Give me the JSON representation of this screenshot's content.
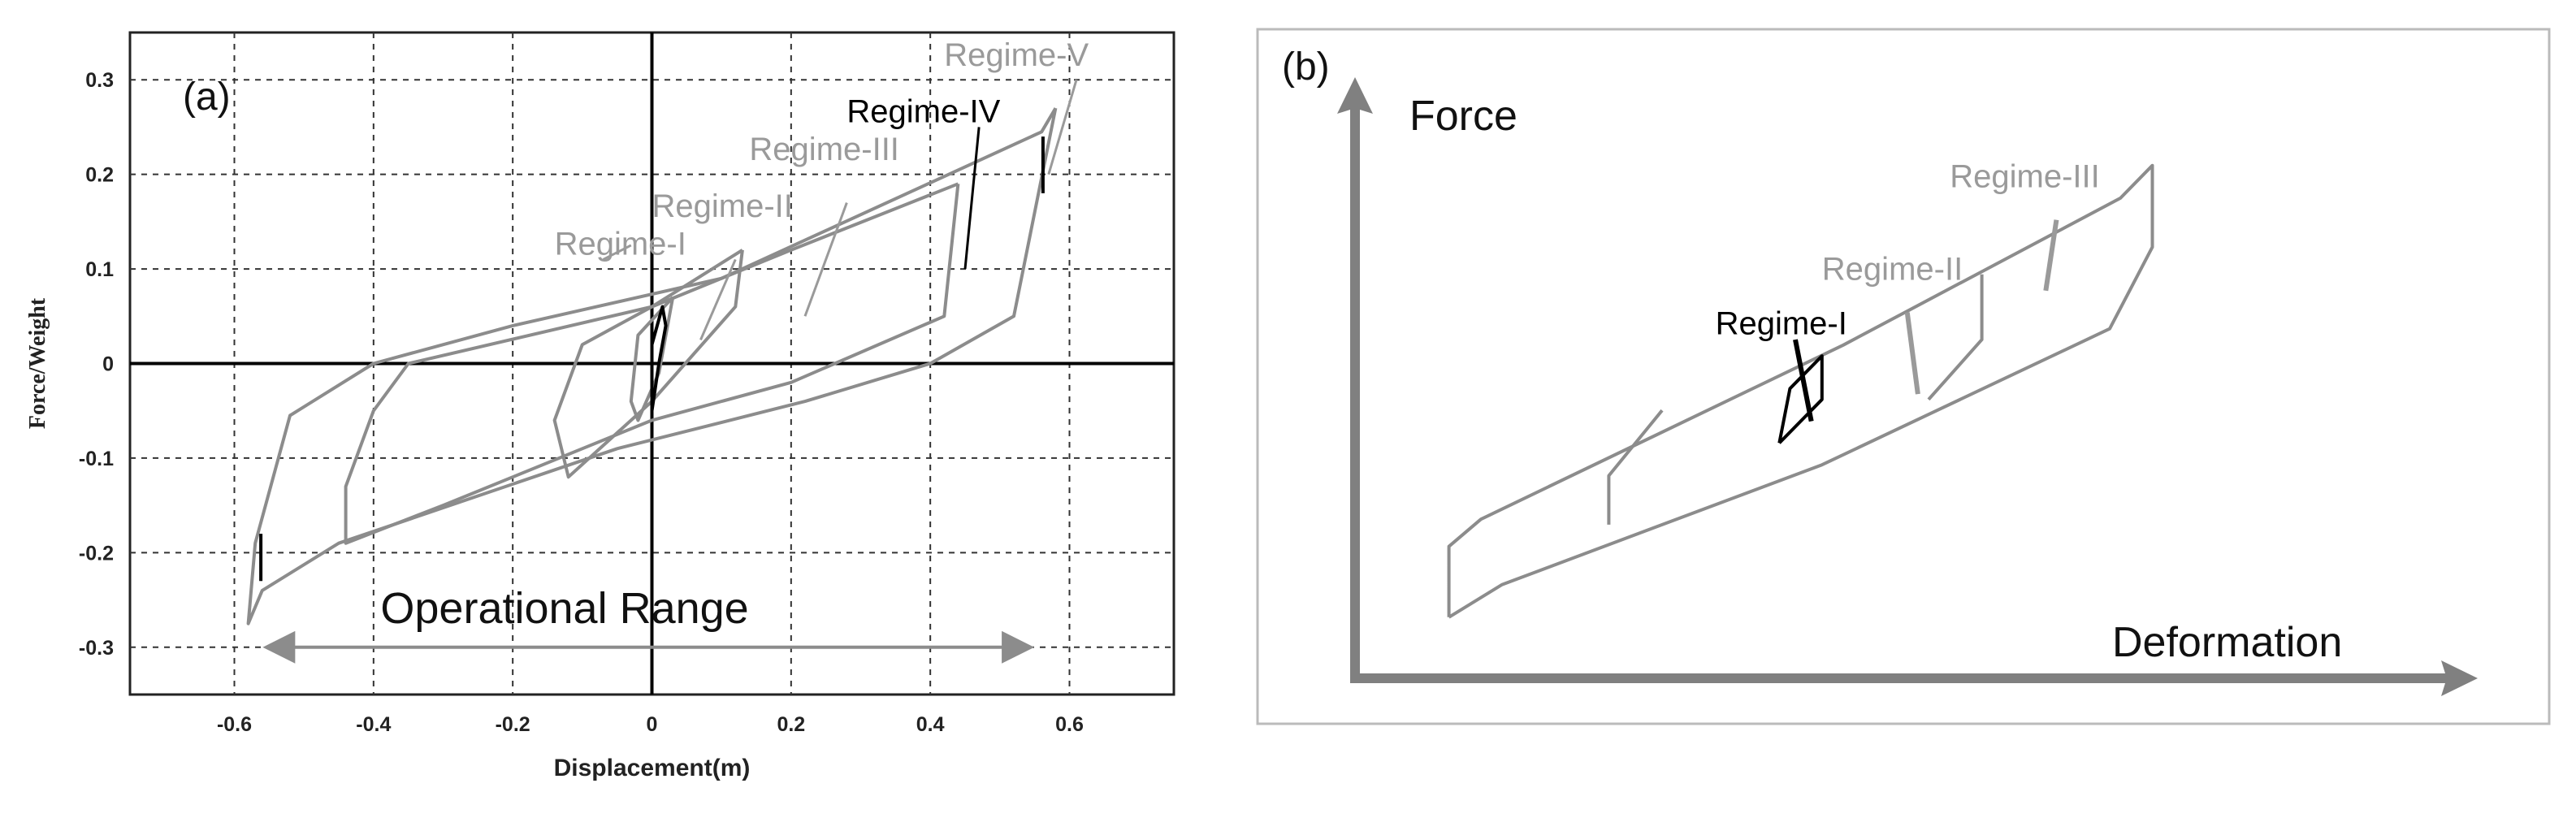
{
  "colors": {
    "gray": "#8c8c8c",
    "black": "#000000",
    "label_gray": "#9a9a9a",
    "axis_gray": "#808080",
    "frame": "#bbbbbb"
  },
  "chart_data": [
    {
      "type": "line",
      "panel_label": "(a)",
      "xlabel": "Displacement(m)",
      "ylabel": "Force/Weight",
      "xlim": [
        -0.75,
        0.75
      ],
      "ylim": [
        -0.35,
        0.35
      ],
      "x_ticks": [
        -0.6,
        -0.4,
        -0.2,
        0,
        0.2,
        0.4,
        0.6
      ],
      "x_tick_labels": [
        "-0.6",
        "-0.4",
        "-0.2",
        "0",
        "0.2",
        "0.4",
        "0.6"
      ],
      "y_ticks": [
        0.3,
        0.2,
        0.1,
        0,
        -0.1,
        -0.2,
        -0.3
      ],
      "y_tick_labels": [
        "0.3",
        "0.2",
        "0.1",
        "0",
        "-0.1",
        "-0.2",
        "-0.3"
      ],
      "grid": true,
      "range_annotation": {
        "text": "Operational Range",
        "from": -0.55,
        "to": 0.54,
        "y": -0.3
      },
      "series": [
        {
          "color": "gray",
          "points": [
            [
              0.58,
              0.27
            ],
            [
              0.52,
              0.05
            ],
            [
              0.4,
              0.0
            ],
            [
              0.22,
              -0.04
            ],
            [
              -0.05,
              -0.09
            ],
            [
              -0.45,
              -0.19
            ],
            [
              -0.56,
              -0.24
            ],
            [
              -0.58,
              -0.275
            ],
            [
              -0.57,
              -0.19
            ],
            [
              -0.52,
              -0.055
            ],
            [
              -0.4,
              0.0
            ],
            [
              -0.2,
              0.04
            ],
            [
              0.1,
              0.09
            ],
            [
              0.56,
              0.245
            ],
            [
              0.58,
              0.27
            ]
          ]
        },
        {
          "color": "gray",
          "points": [
            [
              0.44,
              0.19
            ],
            [
              0.42,
              0.05
            ],
            [
              0.2,
              -0.02
            ],
            [
              0.0,
              -0.06
            ],
            [
              -0.3,
              -0.15
            ],
            [
              -0.44,
              -0.19
            ],
            [
              -0.44,
              -0.13
            ],
            [
              -0.4,
              -0.05
            ],
            [
              -0.35,
              0.0
            ],
            [
              0.0,
              0.06
            ],
            [
              0.2,
              0.12
            ],
            [
              0.44,
              0.19
            ]
          ]
        },
        {
          "color": "gray",
          "points": [
            [
              0.13,
              0.12
            ],
            [
              0.12,
              0.06
            ],
            [
              0.0,
              -0.04
            ],
            [
              -0.12,
              -0.12
            ],
            [
              -0.14,
              -0.06
            ],
            [
              -0.1,
              0.02
            ],
            [
              0.0,
              0.06
            ],
            [
              0.13,
              0.12
            ]
          ]
        },
        {
          "color": "gray",
          "points": [
            [
              0.03,
              0.07
            ],
            [
              0.01,
              -0.01
            ],
            [
              -0.02,
              -0.06
            ],
            [
              -0.03,
              -0.04
            ],
            [
              -0.02,
              0.03
            ],
            [
              0.03,
              0.07
            ]
          ]
        },
        {
          "color": "black",
          "points": [
            [
              0.0,
              -0.05
            ],
            [
              0.01,
              0.0
            ],
            [
              0.02,
              0.04
            ],
            [
              0.015,
              0.06
            ],
            [
              0.0,
              0.02
            ],
            [
              0.0,
              -0.05
            ]
          ]
        },
        {
          "color": "black",
          "points": [
            [
              0.562,
              0.18
            ],
            [
              0.562,
              0.24
            ]
          ]
        },
        {
          "color": "black",
          "points": [
            [
              -0.562,
              -0.18
            ],
            [
              -0.562,
              -0.23
            ]
          ]
        }
      ],
      "annotations": [
        {
          "text": "Regime-V",
          "color": "label_gray",
          "x": 0.42,
          "y": 0.315,
          "leader": [
            [
              0.61,
              0.3
            ],
            [
              0.57,
              0.2
            ]
          ]
        },
        {
          "text": "Regime-IV",
          "color": "black",
          "x": 0.28,
          "y": 0.255,
          "leader": [
            [
              0.47,
              0.25
            ],
            [
              0.45,
              0.1
            ]
          ]
        },
        {
          "text": "Regime-III",
          "color": "label_gray",
          "x": 0.14,
          "y": 0.215,
          "leader": [
            [
              0.28,
              0.17
            ],
            [
              0.22,
              0.05
            ]
          ]
        },
        {
          "text": "Regime-II",
          "color": "label_gray",
          "x": 0.0,
          "y": 0.155,
          "leader": [
            [
              0.12,
              0.11
            ],
            [
              0.07,
              0.025
            ]
          ]
        },
        {
          "text": "Regime-I",
          "color": "label_gray",
          "x": -0.14,
          "y": 0.115,
          "leader": [
            [
              -0.03,
              0.125
            ],
            [
              -0.07,
              0.11
            ]
          ]
        }
      ]
    },
    {
      "type": "line",
      "panel_label": "(b)",
      "xlabel": "Deformation",
      "ylabel": "Force",
      "xlim": [
        0,
        100
      ],
      "ylim": [
        0,
        100
      ],
      "grid": false,
      "series": [
        {
          "color": "gray",
          "points": [
            [
              5,
              6
            ],
            [
              10,
              12
            ],
            [
              40,
              34
            ],
            [
              67,
              59
            ],
            [
              71,
              74
            ],
            [
              71,
              89
            ],
            [
              68,
              83
            ],
            [
              42,
              56
            ],
            [
              8,
              24
            ],
            [
              5,
              19
            ],
            [
              5,
              6
            ]
          ]
        },
        {
          "color": "gray",
          "points": [
            [
              20,
              23
            ],
            [
              20,
              32
            ],
            [
              25,
              44
            ]
          ]
        },
        {
          "color": "gray",
          "points": [
            [
              50,
              46
            ],
            [
              55,
              57
            ],
            [
              55,
              69
            ]
          ]
        },
        {
          "color": "black",
          "points": [
            [
              36,
              38
            ],
            [
              40,
              46
            ],
            [
              40,
              54
            ],
            [
              37,
              48
            ],
            [
              36,
              38
            ]
          ]
        }
      ],
      "annotations": [
        {
          "text": "Regime-III",
          "color": "label_gray",
          "x": 52,
          "y": 85,
          "leader": [
            [
              62,
              79
            ],
            [
              61,
              66
            ]
          ]
        },
        {
          "text": "Regime-II",
          "color": "label_gray",
          "x": 40,
          "y": 68,
          "leader": [
            [
              48,
              62
            ],
            [
              49,
              47
            ]
          ]
        },
        {
          "text": "Regime-I",
          "color": "black",
          "x": 30,
          "y": 58,
          "leader": [
            [
              37.5,
              57
            ],
            [
              39,
              42
            ]
          ]
        }
      ]
    }
  ]
}
